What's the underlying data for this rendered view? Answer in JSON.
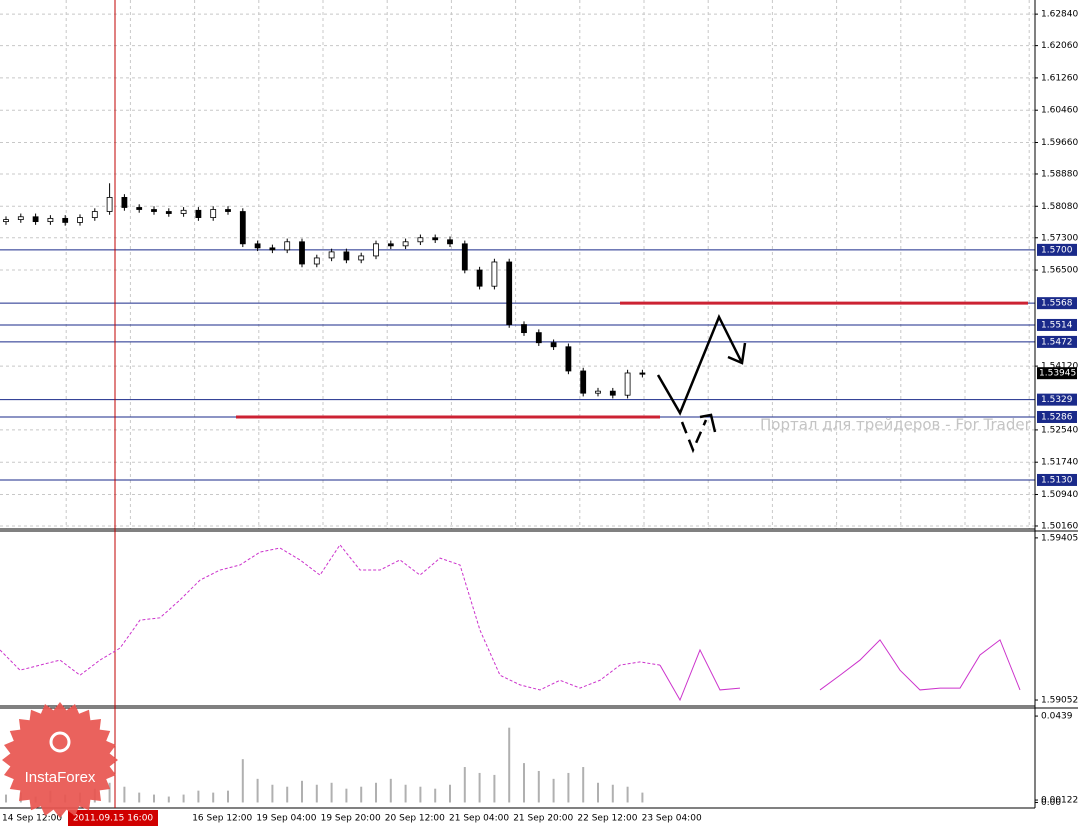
{
  "chart_data": {
    "type": "candlestick",
    "ylim": [
      1.5011,
      1.6319
    ],
    "yticks": [
      {
        "value": 1.6284,
        "label": "1.62840"
      },
      {
        "value": 1.6206,
        "label": "1.62060"
      },
      {
        "value": 1.6126,
        "label": "1.61260"
      },
      {
        "value": 1.6046,
        "label": "1.60460"
      },
      {
        "value": 1.5966,
        "label": "1.59660"
      },
      {
        "value": 1.5888,
        "label": "1.58880"
      },
      {
        "value": 1.5808,
        "label": "1.58080"
      },
      {
        "value": 1.573,
        "label": "1.57300"
      },
      {
        "value": 1.565,
        "label": "1.56500"
      },
      {
        "value": 1.5412,
        "label": "1.54120"
      },
      {
        "value": 1.5254,
        "label": "1.52540"
      },
      {
        "value": 1.5174,
        "label": "1.51740"
      },
      {
        "value": 1.5094,
        "label": "1.50940"
      },
      {
        "value": 1.5016,
        "label": "1.50160"
      }
    ],
    "grid": true,
    "candles": {
      "open": [
        1.577,
        1.5775,
        1.5782,
        1.577,
        1.5778,
        1.5768,
        1.578,
        1.5795,
        1.583,
        1.5805,
        1.58,
        1.5795,
        1.579,
        1.5798,
        1.578,
        1.58,
        1.5795,
        1.5715,
        1.5705,
        1.57,
        1.572,
        1.5665,
        1.568,
        1.5695,
        1.5675,
        1.5685,
        1.5715,
        1.571,
        1.572,
        1.573,
        1.5725,
        1.5715,
        1.565,
        1.561,
        1.567,
        1.5515,
        1.5495,
        1.547,
        1.546,
        1.54,
        1.5345,
        1.535,
        1.534,
        1.5395
      ],
      "high": [
        1.5783,
        1.579,
        1.579,
        1.5786,
        1.5786,
        1.5788,
        1.5803,
        1.5865,
        1.5838,
        1.5813,
        1.5808,
        1.5803,
        1.5806,
        1.5806,
        1.5808,
        1.5808,
        1.5803,
        1.5723,
        1.5713,
        1.5728,
        1.5728,
        1.5688,
        1.5703,
        1.5703,
        1.5693,
        1.5723,
        1.5723,
        1.5728,
        1.5738,
        1.5738,
        1.5733,
        1.5723,
        1.5658,
        1.5678,
        1.5678,
        1.5523,
        1.5503,
        1.5478,
        1.5468,
        1.5408,
        1.5358,
        1.5358,
        1.5403,
        1.5403
      ],
      "low": [
        1.5762,
        1.5767,
        1.5762,
        1.5762,
        1.576,
        1.576,
        1.5772,
        1.5787,
        1.5797,
        1.5792,
        1.5787,
        1.5782,
        1.5782,
        1.5772,
        1.5772,
        1.5787,
        1.5707,
        1.5697,
        1.5692,
        1.5692,
        1.5657,
        1.5657,
        1.5672,
        1.5667,
        1.5667,
        1.5677,
        1.5702,
        1.5702,
        1.5712,
        1.5717,
        1.5707,
        1.5642,
        1.5602,
        1.5602,
        1.5507,
        1.5487,
        1.5462,
        1.5452,
        1.5392,
        1.5337,
        1.5337,
        1.5332,
        1.5332,
        1.5384
      ],
      "close": [
        1.5775,
        1.5782,
        1.577,
        1.5778,
        1.5768,
        1.578,
        1.5795,
        1.583,
        1.5805,
        1.58,
        1.5795,
        1.579,
        1.5798,
        1.578,
        1.58,
        1.5795,
        1.5715,
        1.5705,
        1.57,
        1.572,
        1.5665,
        1.568,
        1.5695,
        1.5675,
        1.5685,
        1.5715,
        1.571,
        1.572,
        1.573,
        1.5725,
        1.5715,
        1.565,
        1.561,
        1.567,
        1.5515,
        1.5495,
        1.547,
        1.546,
        1.54,
        1.5345,
        1.535,
        1.534,
        1.5395,
        1.5392
      ]
    },
    "levels": [
      {
        "value": 1.57,
        "label": "1.5700"
      },
      {
        "value": 1.5568
      },
      {
        "value": 1.5514
      },
      {
        "value": 1.5472
      },
      {
        "value": 1.5329
      },
      {
        "value": 1.5286
      },
      {
        "value": 1.513,
        "label": "1.5130"
      }
    ],
    "level_color": "#1a2a8a",
    "zones": [
      {
        "value": 1.5568
      },
      {
        "value": 1.5286
      }
    ],
    "zone_color": "#cc2233",
    "current_price": 1.53945,
    "cursor_label": "2011.09.15 16:00",
    "time_labels": [
      "14 Sep 12:00",
      "16 Sep 12:00",
      "19 Sep 04:00",
      "19 Sep 20:00",
      "20 Sep 12:00",
      "21 Sep 04:00",
      "21 Sep 20:00",
      "22 Sep 12:00",
      "23 Sep 04:00"
    ],
    "watermark": "Портал для трейдеров - For Trader",
    "logo": "InstaForex",
    "indicator": {
      "color": "#cc33cc",
      "ylim": [
        1.59039,
        1.5942
      ],
      "yticks": [
        1.59405,
        1.59052
      ],
      "history": [
        1.59161,
        1.59117,
        1.59128,
        1.59139,
        1.59106,
        1.59139,
        1.59165,
        1.59226,
        1.59231,
        1.5927,
        1.59313,
        1.59335,
        1.59346,
        1.59374,
        1.59383,
        1.59357,
        1.59324,
        1.5939,
        1.59335,
        1.59335,
        1.59357,
        1.59324,
        1.59361,
        1.59346,
        1.59204,
        1.59106,
        1.59085,
        1.59074,
        1.59095,
        1.59078,
        1.59095,
        1.59128,
        1.59135,
        1.59128
      ],
      "forecast": [
        1.59128,
        1.59052,
        1.59161,
        1.59074,
        1.59078,
        null,
        null,
        null,
        1.59074,
        1.59106,
        1.59139,
        1.59183,
        1.59117,
        1.59074,
        1.59078,
        1.59078,
        1.5915,
        1.59183,
        1.59074
      ]
    },
    "volume": {
      "color": "#b0b0b0",
      "ylim": [
        -0.0018,
        0.048
      ],
      "yticks": [
        0.0439,
        0.00122,
        {
          "value": 0,
          "label": "0.00"
        }
      ],
      "values": [
        0.004,
        0.005,
        0.003,
        0.006,
        0.004,
        0.005,
        0.007,
        0.01,
        0.008,
        0.005,
        0.004,
        0.003,
        0.004,
        0.006,
        0.005,
        0.006,
        0.022,
        0.012,
        0.009,
        0.008,
        0.011,
        0.009,
        0.01,
        0.007,
        0.008,
        0.01,
        0.012,
        0.009,
        0.008,
        0.007,
        0.009,
        0.018,
        0.015,
        0.014,
        0.038,
        0.02,
        0.016,
        0.012,
        0.015,
        0.018,
        0.01,
        0.009,
        0.008,
        0.005
      ]
    }
  }
}
